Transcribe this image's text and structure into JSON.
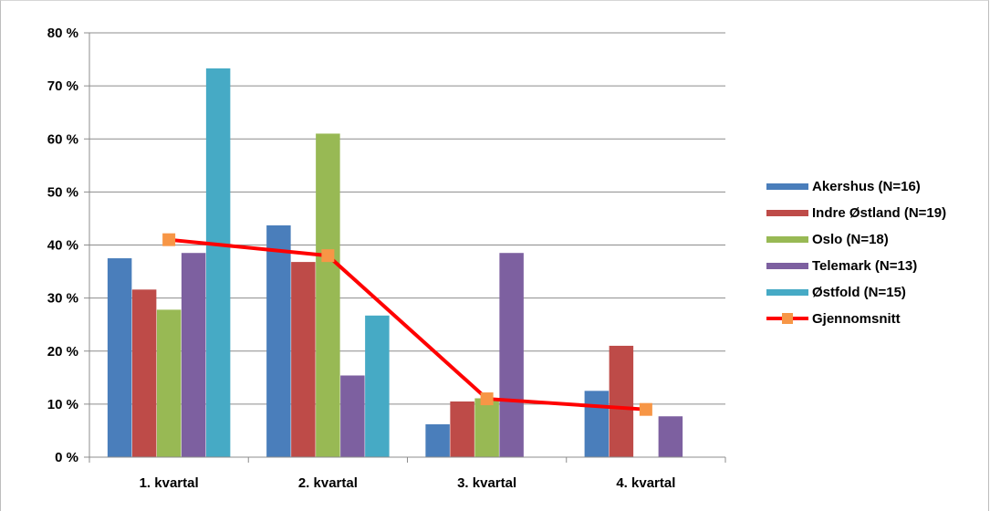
{
  "chart_data": {
    "type": "bar",
    "categories": [
      "1. kvartal",
      "2. kvartal",
      "3. kvartal",
      "4. kvartal"
    ],
    "y_tick_labels": [
      "0 %",
      "10 %",
      "20 %",
      "30 %",
      "40 %",
      "50 %",
      "60 %",
      "70 %",
      "80 %"
    ],
    "ylim": [
      0,
      80
    ],
    "grid": true,
    "legend_position": "right",
    "series": [
      {
        "name": "Akershus (N=16)",
        "type": "bar",
        "color": "#4a7ebb",
        "values": [
          37.5,
          43.7,
          6.2,
          12.5
        ]
      },
      {
        "name": "Indre Østland (N=19)",
        "type": "bar",
        "color": "#be4b48",
        "values": [
          31.6,
          36.8,
          10.5,
          21.0
        ]
      },
      {
        "name": "Oslo (N=18)",
        "type": "bar",
        "color": "#98b954",
        "values": [
          27.8,
          61.0,
          11.1,
          0
        ]
      },
      {
        "name": "Telemark (N=13)",
        "type": "bar",
        "color": "#7d60a0",
        "values": [
          38.5,
          15.4,
          38.5,
          7.7
        ]
      },
      {
        "name": "Østfold (N=15)",
        "type": "bar",
        "color": "#46aac5",
        "values": [
          73.3,
          26.7,
          0,
          0
        ]
      },
      {
        "name": "Gjennomsnitt",
        "type": "line",
        "color": "#ff0000",
        "marker_color": "#f79646",
        "values": [
          41.0,
          38.0,
          11.0,
          9.0
        ]
      }
    ]
  }
}
